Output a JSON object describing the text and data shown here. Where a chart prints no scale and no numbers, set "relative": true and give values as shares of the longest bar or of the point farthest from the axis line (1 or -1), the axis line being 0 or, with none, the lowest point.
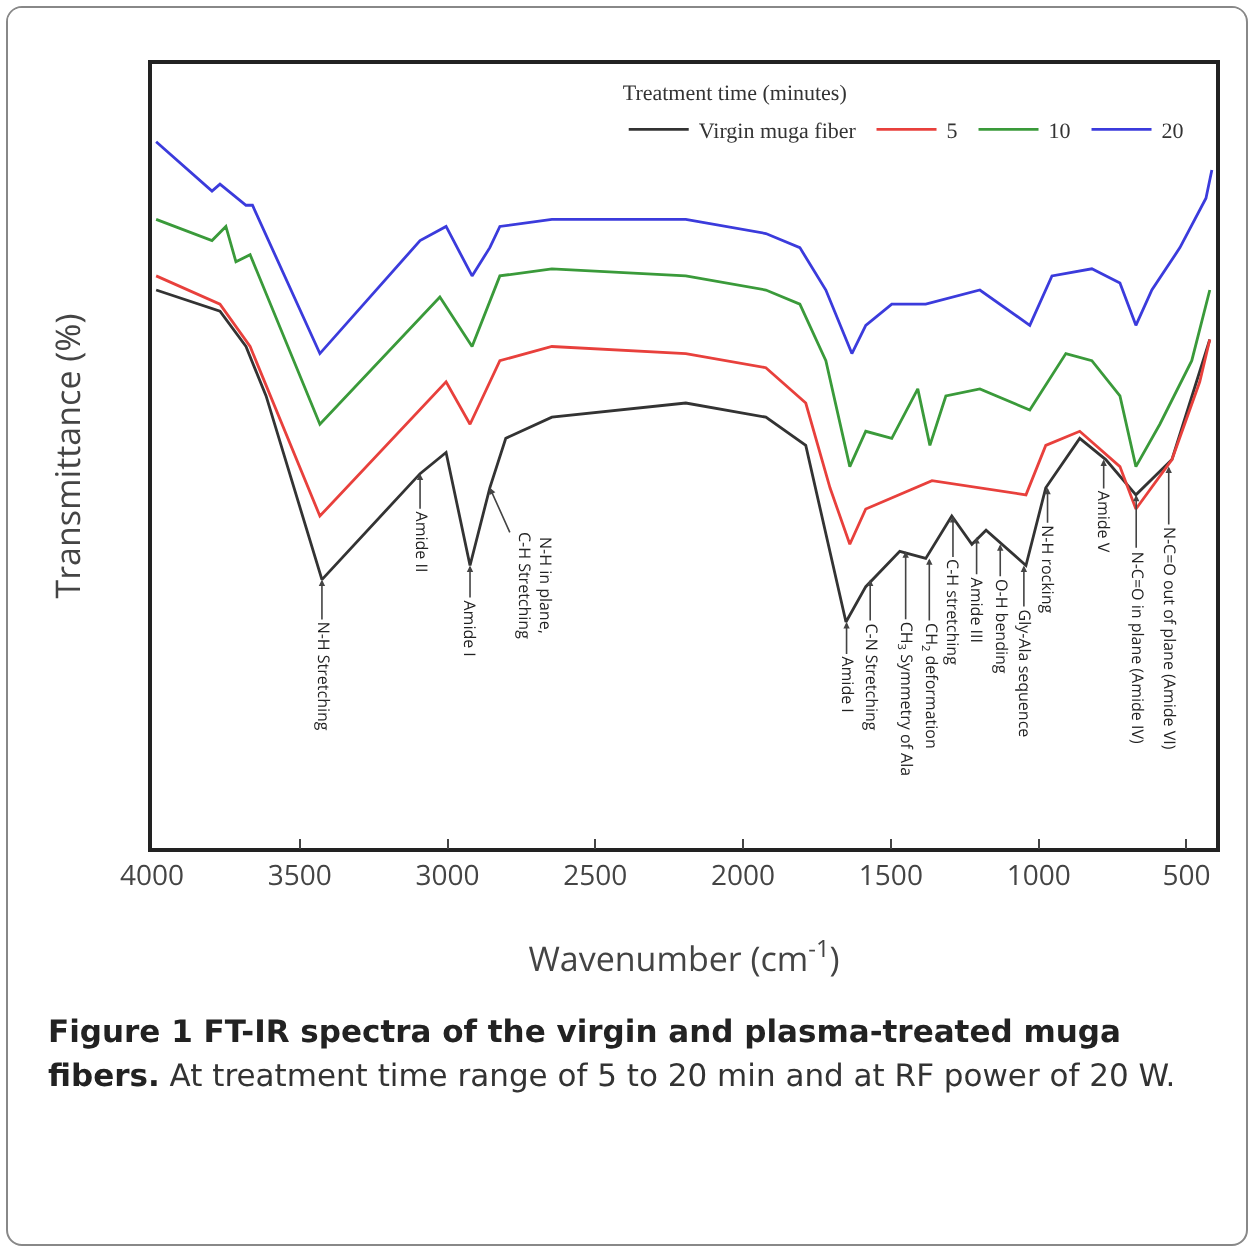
{
  "chart_data": {
    "type": "line",
    "title": "Figure 1 FT-IR spectra of the virgin and plasma-treated muga fibers.",
    "subtitle": "At treatment time range of 5 to 20 min and at RF power of 20 W.",
    "xlabel": "Wavenumber (cm$^{-1}$)",
    "ylabel": "Transmittance (%)",
    "legend_title": "Treatment time (minutes)",
    "relative": true,
    "xlim": [
      4000,
      400
    ],
    "xticks": [
      4000,
      3500,
      3000,
      2500,
      2000,
      1500,
      1000,
      500
    ],
    "grid": false,
    "legend": "top right",
    "marker": "none",
    "line_style": "solid",
    "series": [
      {
        "name": "Virgin muga fiber",
        "color": "#333333",
        "x": [
          3986,
          3770,
          3682,
          3614,
          3425,
          3093,
          3005,
          2924,
          2857,
          2803,
          2647,
          2194,
          1923,
          1788,
          1652,
          1585,
          1470,
          1382,
          1294,
          1226,
          1178,
          1043,
          976,
          861,
          773,
          671,
          549,
          421
        ],
        "values": [
          0.79,
          0.76,
          0.71,
          0.64,
          0.38,
          0.53,
          0.56,
          0.4,
          0.51,
          0.58,
          0.61,
          0.63,
          0.61,
          0.57,
          0.32,
          0.37,
          0.42,
          0.41,
          0.47,
          0.43,
          0.45,
          0.4,
          0.51,
          0.58,
          0.55,
          0.5,
          0.55,
          0.72
        ]
      },
      {
        "name": "5",
        "color": "#e8403c",
        "x": [
          3986,
          3770,
          3668,
          3432,
          3005,
          2924,
          2823,
          2647,
          2194,
          1923,
          1788,
          1706,
          1639,
          1585,
          1361,
          1043,
          976,
          861,
          725,
          671,
          549,
          455,
          421
        ],
        "values": [
          0.81,
          0.77,
          0.71,
          0.47,
          0.66,
          0.6,
          0.69,
          0.71,
          0.7,
          0.68,
          0.63,
          0.51,
          0.43,
          0.48,
          0.52,
          0.5,
          0.57,
          0.59,
          0.54,
          0.48,
          0.55,
          0.66,
          0.72
        ]
      },
      {
        "name": "10",
        "color": "#3a9a3a",
        "x": [
          3986,
          3797,
          3750,
          3716,
          3668,
          3432,
          3026,
          2917,
          2823,
          2647,
          2194,
          1923,
          1808,
          1720,
          1639,
          1585,
          1497,
          1409,
          1368,
          1314,
          1199,
          1030,
          908,
          820,
          725,
          671,
          590,
          482,
          421
        ],
        "values": [
          0.89,
          0.86,
          0.88,
          0.83,
          0.84,
          0.6,
          0.78,
          0.71,
          0.81,
          0.82,
          0.81,
          0.79,
          0.77,
          0.69,
          0.54,
          0.59,
          0.58,
          0.65,
          0.57,
          0.64,
          0.65,
          0.62,
          0.7,
          0.69,
          0.64,
          0.54,
          0.6,
          0.69,
          0.79
        ]
      },
      {
        "name": "20",
        "color": "#3b3bdc",
        "x": [
          3986,
          3797,
          3770,
          3682,
          3660,
          3432,
          3093,
          3005,
          2917,
          2857,
          2823,
          2647,
          2194,
          1923,
          1808,
          1720,
          1632,
          1585,
          1497,
          1382,
          1199,
          1030,
          955,
          820,
          725,
          671,
          617,
          522,
          434,
          414
        ],
        "values": [
          1.0,
          0.93,
          0.94,
          0.91,
          0.91,
          0.7,
          0.86,
          0.88,
          0.81,
          0.85,
          0.88,
          0.89,
          0.89,
          0.87,
          0.85,
          0.79,
          0.7,
          0.74,
          0.77,
          0.77,
          0.79,
          0.74,
          0.81,
          0.82,
          0.8,
          0.74,
          0.79,
          0.85,
          0.92,
          0.96
        ]
      }
    ],
    "annotations": [
      {
        "text": "N-H Stretching",
        "x": 3425,
        "y": 0.38
      },
      {
        "text": "Amide II",
        "x": 3093,
        "y": 0.53
      },
      {
        "text": "Amide I",
        "x": 2924,
        "y": 0.4
      },
      {
        "text": "N-H in plane,\nC-H Stretching",
        "x": 2857,
        "y": 0.51
      },
      {
        "text": "Amide I",
        "x": 1650,
        "y": 0.32
      },
      {
        "text": "C-N Stretching",
        "x": 1570,
        "y": 0.38
      },
      {
        "text": "CH$_{3}$ Symmetry of Ala",
        "x": 1450,
        "y": 0.42
      },
      {
        "text": "CH$_{2}$ deformation",
        "x": 1370,
        "y": 0.41
      },
      {
        "text": "C-H stretching",
        "x": 1290,
        "y": 0.47
      },
      {
        "text": "Amide III",
        "x": 1210,
        "y": 0.44
      },
      {
        "text": "O-H bending",
        "x": 1130,
        "y": 0.43
      },
      {
        "text": "Gly-Ala sequence",
        "x": 1050,
        "y": 0.4
      },
      {
        "text": "N-H rocking",
        "x": 970,
        "y": 0.51
      },
      {
        "text": "Amide V",
        "x": 780,
        "y": 0.55
      },
      {
        "text": "N-C=O in plane (Amide IV)",
        "x": 670,
        "y": 0.5
      },
      {
        "text": "N-C=O out of plane (Amide VI)",
        "x": 560,
        "y": 0.54
      }
    ]
  }
}
